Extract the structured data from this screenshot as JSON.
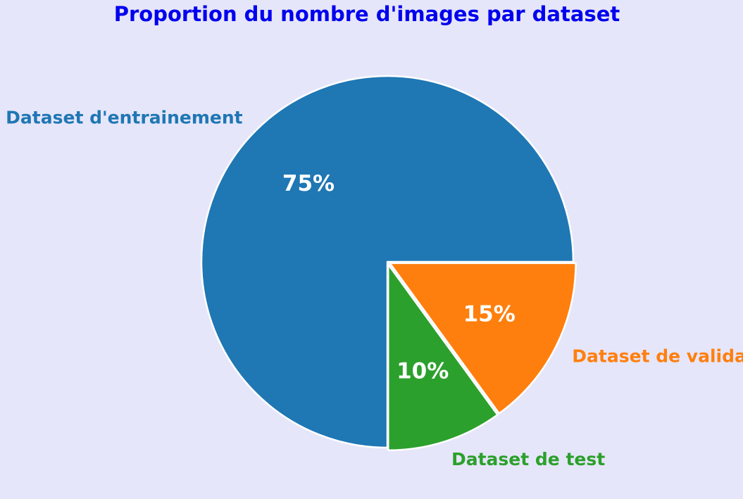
{
  "chart_data": {
    "type": "pie",
    "title": "Proportion du nombre d'images par dataset",
    "title_color": "#0000ee",
    "background": "#e6e6fa",
    "slices": [
      {
        "label": "Dataset d'entrainement",
        "value": 75,
        "pct_label": "75%",
        "color": "#1f77b4",
        "exploded": false
      },
      {
        "label": "Dataset de validation",
        "value": 15,
        "pct_label": "15%",
        "color": "#ff7f0e",
        "exploded": true
      },
      {
        "label": "Dataset de test",
        "value": 10,
        "pct_label": "10%",
        "color": "#2ca02c",
        "exploded": true
      }
    ]
  }
}
